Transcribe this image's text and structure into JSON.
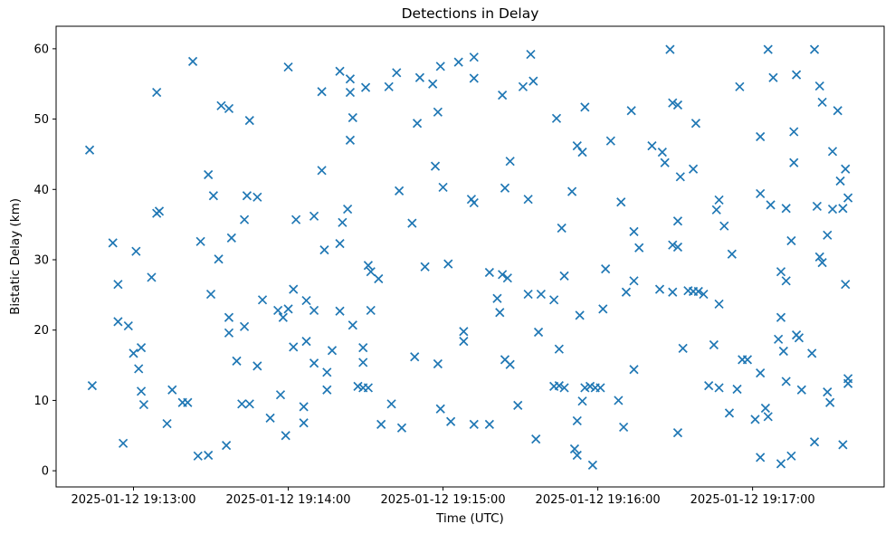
{
  "figure": {
    "title": "Detections in Delay",
    "xlabel": "Time (UTC)",
    "ylabel": "Bistatic Delay (km)"
  },
  "chart_data": {
    "type": "scatter",
    "title": "Detections in Delay",
    "xlabel": "Time (UTC)",
    "ylabel": "Bistatic Delay (km)",
    "date": "2025-01-12",
    "marker": "x",
    "marker_color": "#1f77b4",
    "grid": false,
    "legend": "none",
    "x_ticks": [
      {
        "time": "19:13:00",
        "label": "2025-01-12 19:13:00"
      },
      {
        "time": "19:14:00",
        "label": "2025-01-12 19:14:00"
      },
      {
        "time": "19:15:00",
        "label": "2025-01-12 19:15:00"
      },
      {
        "time": "19:16:00",
        "label": "2025-01-12 19:16:00"
      },
      {
        "time": "19:17:00",
        "label": "2025-01-12 19:17:00"
      }
    ],
    "y_ticks": [
      0,
      10,
      20,
      30,
      40,
      50,
      60
    ],
    "xlim": [
      "19:12:30",
      "19:17:51"
    ],
    "ylim": [
      -2.3,
      63.2
    ],
    "points": [
      [
        "19:13:23",
        58.2
      ],
      [
        "19:13:09",
        53.8
      ],
      [
        "19:13:34",
        51.9
      ],
      [
        "19:13:37",
        51.5
      ],
      [
        "19:13:45",
        49.8
      ],
      [
        "19:12:43",
        45.6
      ],
      [
        "19:13:29",
        42.1
      ],
      [
        "19:14:00",
        57.4
      ],
      [
        "19:14:20",
        56.8
      ],
      [
        "19:14:24",
        55.7
      ],
      [
        "19:14:13",
        53.9
      ],
      [
        "19:14:24",
        53.8
      ],
      [
        "19:14:30",
        54.5
      ],
      [
        "19:14:39",
        54.6
      ],
      [
        "19:14:42",
        56.6
      ],
      [
        "19:14:51",
        55.9
      ],
      [
        "19:14:56",
        55.0
      ],
      [
        "19:14:59",
        57.5
      ],
      [
        "19:15:06",
        58.1
      ],
      [
        "19:15:12",
        58.8
      ],
      [
        "19:14:25",
        50.2
      ],
      [
        "19:14:58",
        51.0
      ],
      [
        "19:14:50",
        49.4
      ],
      [
        "19:14:24",
        47.0
      ],
      [
        "19:14:13",
        42.7
      ],
      [
        "19:14:57",
        43.3
      ],
      [
        "19:15:12",
        55.8
      ],
      [
        "19:15:34",
        59.2
      ],
      [
        "19:16:28",
        59.9
      ],
      [
        "19:15:31",
        54.6
      ],
      [
        "19:15:35",
        55.4
      ],
      [
        "19:15:23",
        53.4
      ],
      [
        "19:15:44",
        50.1
      ],
      [
        "19:15:55",
        51.7
      ],
      [
        "19:16:13",
        51.2
      ],
      [
        "19:16:29",
        52.3
      ],
      [
        "19:16:31",
        52.0
      ],
      [
        "19:16:05",
        46.9
      ],
      [
        "19:15:52",
        46.2
      ],
      [
        "19:15:54",
        45.3
      ],
      [
        "19:16:21",
        46.2
      ],
      [
        "19:16:25",
        45.3
      ],
      [
        "19:16:26",
        43.8
      ],
      [
        "19:15:26",
        44.0
      ],
      [
        "19:17:06",
        59.9
      ],
      [
        "19:17:24",
        59.9
      ],
      [
        "19:17:08",
        55.9
      ],
      [
        "19:17:17",
        56.3
      ],
      [
        "19:16:55",
        54.6
      ],
      [
        "19:17:26",
        54.7
      ],
      [
        "19:17:27",
        52.4
      ],
      [
        "19:17:33",
        51.2
      ],
      [
        "19:16:38",
        49.4
      ],
      [
        "19:17:03",
        47.5
      ],
      [
        "19:17:16",
        48.2
      ],
      [
        "19:17:31",
        45.4
      ],
      [
        "19:17:16",
        43.8
      ],
      [
        "19:16:37",
        42.9
      ],
      [
        "19:17:36",
        42.9
      ],
      [
        "19:16:32",
        41.8
      ],
      [
        "19:13:31",
        39.1
      ],
      [
        "19:13:44",
        39.1
      ],
      [
        "19:13:48",
        38.9
      ],
      [
        "19:13:09",
        36.6
      ],
      [
        "19:13:10",
        36.9
      ],
      [
        "19:13:43",
        35.7
      ],
      [
        "19:12:52",
        32.4
      ],
      [
        "19:13:01",
        31.2
      ],
      [
        "19:13:26",
        32.6
      ],
      [
        "19:13:38",
        33.1
      ],
      [
        "19:13:33",
        30.1
      ],
      [
        "19:13:07",
        27.5
      ],
      [
        "19:12:54",
        26.5
      ],
      [
        "19:13:30",
        25.1
      ],
      [
        "19:13:37",
        21.8
      ],
      [
        "19:13:43",
        20.5
      ],
      [
        "19:12:54",
        21.2
      ],
      [
        "19:12:58",
        20.6
      ],
      [
        "19:13:50",
        24.3
      ],
      [
        "19:13:37",
        19.6
      ],
      [
        "19:14:43",
        39.8
      ],
      [
        "19:15:00",
        40.3
      ],
      [
        "19:15:11",
        38.6
      ],
      [
        "19:15:12",
        38.1
      ],
      [
        "19:14:23",
        37.2
      ],
      [
        "19:14:03",
        35.7
      ],
      [
        "19:14:10",
        36.2
      ],
      [
        "19:14:21",
        35.3
      ],
      [
        "19:14:48",
        35.2
      ],
      [
        "19:14:20",
        32.3
      ],
      [
        "19:14:14",
        31.4
      ],
      [
        "19:14:31",
        29.2
      ],
      [
        "19:14:32",
        28.3
      ],
      [
        "19:14:35",
        27.3
      ],
      [
        "19:14:53",
        29.0
      ],
      [
        "19:15:02",
        29.4
      ],
      [
        "19:14:02",
        25.8
      ],
      [
        "19:14:07",
        24.2
      ],
      [
        "19:13:56",
        22.8
      ],
      [
        "19:14:00",
        23.0
      ],
      [
        "19:13:58",
        21.8
      ],
      [
        "19:14:10",
        22.8
      ],
      [
        "19:14:20",
        22.7
      ],
      [
        "19:14:32",
        22.8
      ],
      [
        "19:14:25",
        20.7
      ],
      [
        "19:15:24",
        40.2
      ],
      [
        "19:15:33",
        38.6
      ],
      [
        "19:15:50",
        39.7
      ],
      [
        "19:16:09",
        38.2
      ],
      [
        "19:15:46",
        34.5
      ],
      [
        "19:16:14",
        34.0
      ],
      [
        "19:16:16",
        31.7
      ],
      [
        "19:16:31",
        35.5
      ],
      [
        "19:16:29",
        32.1
      ],
      [
        "19:16:31",
        31.8
      ],
      [
        "19:15:18",
        28.2
      ],
      [
        "19:15:23",
        27.9
      ],
      [
        "19:15:25",
        27.4
      ],
      [
        "19:15:47",
        27.7
      ],
      [
        "19:16:03",
        28.7
      ],
      [
        "19:16:14",
        27.0
      ],
      [
        "19:16:11",
        25.4
      ],
      [
        "19:16:24",
        25.8
      ],
      [
        "19:16:29",
        25.4
      ],
      [
        "19:15:21",
        24.5
      ],
      [
        "19:15:33",
        25.1
      ],
      [
        "19:15:38",
        25.1
      ],
      [
        "19:15:43",
        24.3
      ],
      [
        "19:15:22",
        22.5
      ],
      [
        "19:15:53",
        22.1
      ],
      [
        "19:16:02",
        23.0
      ],
      [
        "19:15:37",
        19.7
      ],
      [
        "19:17:34",
        41.2
      ],
      [
        "19:17:03",
        39.4
      ],
      [
        "19:16:47",
        38.5
      ],
      [
        "19:16:46",
        37.1
      ],
      [
        "19:17:07",
        37.8
      ],
      [
        "19:17:13",
        37.3
      ],
      [
        "19:17:25",
        37.6
      ],
      [
        "19:17:31",
        37.2
      ],
      [
        "19:17:35",
        37.3
      ],
      [
        "19:17:37",
        38.8
      ],
      [
        "19:16:49",
        34.8
      ],
      [
        "19:17:15",
        32.7
      ],
      [
        "19:17:29",
        33.5
      ],
      [
        "19:16:52",
        30.8
      ],
      [
        "19:17:26",
        30.4
      ],
      [
        "19:17:27",
        29.6
      ],
      [
        "19:17:11",
        28.3
      ],
      [
        "19:17:13",
        27.0
      ],
      [
        "19:17:36",
        26.5
      ],
      [
        "19:16:35",
        25.6
      ],
      [
        "19:16:37",
        25.5
      ],
      [
        "19:16:39",
        25.5
      ],
      [
        "19:16:41",
        25.1
      ],
      [
        "19:16:47",
        23.7
      ],
      [
        "19:17:11",
        21.8
      ],
      [
        "19:13:00",
        16.7
      ],
      [
        "19:13:03",
        17.5
      ],
      [
        "19:13:02",
        14.5
      ],
      [
        "19:12:44",
        12.1
      ],
      [
        "19:13:03",
        11.3
      ],
      [
        "19:13:15",
        11.5
      ],
      [
        "19:13:04",
        9.4
      ],
      [
        "19:13:19",
        9.7
      ],
      [
        "19:13:21",
        9.7
      ],
      [
        "19:13:42",
        9.5
      ],
      [
        "19:13:45",
        9.5
      ],
      [
        "19:13:13",
        6.7
      ],
      [
        "19:12:56",
        3.9
      ],
      [
        "19:13:36",
        3.6
      ],
      [
        "19:13:25",
        2.1
      ],
      [
        "19:13:29",
        2.2
      ],
      [
        "19:13:40",
        15.6
      ],
      [
        "19:13:48",
        14.9
      ],
      [
        "19:14:02",
        17.6
      ],
      [
        "19:14:07",
        18.4
      ],
      [
        "19:14:17",
        17.1
      ],
      [
        "19:14:10",
        15.3
      ],
      [
        "19:14:15",
        14.0
      ],
      [
        "19:14:29",
        17.5
      ],
      [
        "19:14:29",
        15.4
      ],
      [
        "19:14:49",
        16.2
      ],
      [
        "19:14:58",
        15.2
      ],
      [
        "19:15:08",
        19.8
      ],
      [
        "19:15:08",
        18.4
      ],
      [
        "19:14:15",
        11.5
      ],
      [
        "19:13:57",
        10.8
      ],
      [
        "19:14:27",
        12.0
      ],
      [
        "19:14:29",
        11.8
      ],
      [
        "19:14:31",
        11.8
      ],
      [
        "19:14:06",
        9.1
      ],
      [
        "19:14:40",
        9.5
      ],
      [
        "19:14:06",
        6.8
      ],
      [
        "19:13:53",
        7.5
      ],
      [
        "19:14:36",
        6.6
      ],
      [
        "19:14:44",
        6.1
      ],
      [
        "19:14:59",
        8.8
      ],
      [
        "19:15:03",
        7.0
      ],
      [
        "19:13:59",
        5.0
      ],
      [
        "19:15:45",
        17.3
      ],
      [
        "19:15:24",
        15.8
      ],
      [
        "19:15:26",
        15.1
      ],
      [
        "19:16:14",
        14.4
      ],
      [
        "19:15:43",
        12.0
      ],
      [
        "19:15:45",
        12.1
      ],
      [
        "19:15:47",
        11.8
      ],
      [
        "19:15:55",
        11.8
      ],
      [
        "19:15:57",
        12.0
      ],
      [
        "19:15:59",
        11.8
      ],
      [
        "19:16:01",
        11.8
      ],
      [
        "19:15:54",
        9.9
      ],
      [
        "19:16:08",
        10.0
      ],
      [
        "19:15:29",
        9.3
      ],
      [
        "19:15:52",
        7.1
      ],
      [
        "19:16:10",
        6.2
      ],
      [
        "19:15:12",
        6.6
      ],
      [
        "19:15:18",
        6.6
      ],
      [
        "19:15:36",
        4.5
      ],
      [
        "19:16:31",
        5.4
      ],
      [
        "19:15:51",
        3.1
      ],
      [
        "19:15:52",
        2.2
      ],
      [
        "19:15:58",
        0.8
      ],
      [
        "19:16:33",
        17.4
      ],
      [
        "19:16:45",
        17.9
      ],
      [
        "19:17:10",
        18.7
      ],
      [
        "19:17:17",
        19.3
      ],
      [
        "19:17:18",
        18.9
      ],
      [
        "19:17:12",
        17.0
      ],
      [
        "19:17:23",
        16.7
      ],
      [
        "19:16:56",
        15.8
      ],
      [
        "19:16:58",
        15.8
      ],
      [
        "19:17:03",
        13.9
      ],
      [
        "19:17:13",
        12.7
      ],
      [
        "19:16:43",
        12.1
      ],
      [
        "19:16:47",
        11.8
      ],
      [
        "19:16:54",
        11.6
      ],
      [
        "19:17:19",
        11.5
      ],
      [
        "19:17:37",
        13.1
      ],
      [
        "19:17:37",
        12.4
      ],
      [
        "19:17:29",
        11.2
      ],
      [
        "19:17:30",
        9.7
      ],
      [
        "19:16:51",
        8.2
      ],
      [
        "19:17:01",
        7.3
      ],
      [
        "19:17:05",
        8.9
      ],
      [
        "19:17:06",
        7.7
      ],
      [
        "19:17:24",
        4.1
      ],
      [
        "19:17:35",
        3.7
      ],
      [
        "19:17:03",
        1.9
      ],
      [
        "19:17:11",
        1.0
      ],
      [
        "19:17:15",
        2.1
      ]
    ]
  }
}
